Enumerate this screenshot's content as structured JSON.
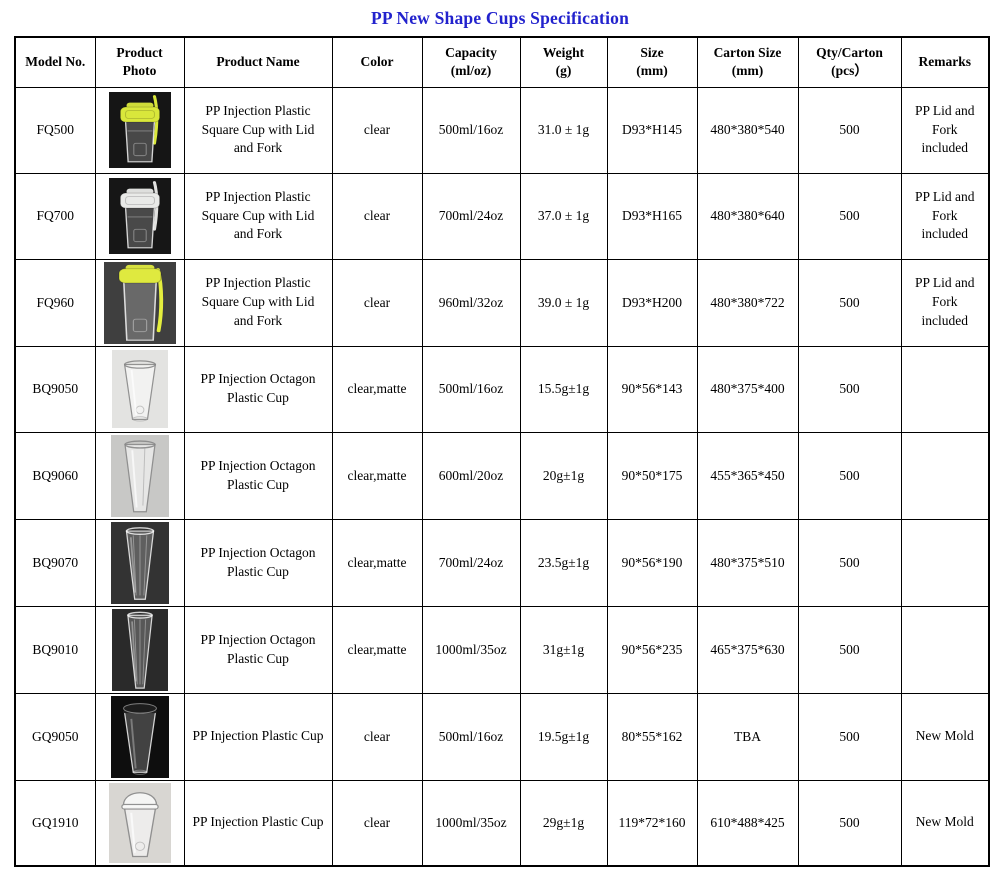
{
  "title": "PP New Shape Cups Specification",
  "title_color": "#2222cd",
  "table": {
    "columns": [
      {
        "key": "model",
        "label": "Model No.",
        "sublabel": ""
      },
      {
        "key": "photo",
        "label": "Product",
        "sublabel": "Photo"
      },
      {
        "key": "name",
        "label": "Product Name",
        "sublabel": ""
      },
      {
        "key": "color",
        "label": "Color",
        "sublabel": ""
      },
      {
        "key": "capacity",
        "label": "Capacity",
        "sublabel": "(ml/oz)"
      },
      {
        "key": "weight",
        "label": "Weight",
        "sublabel": "(g)"
      },
      {
        "key": "size",
        "label": "Size",
        "sublabel": "(mm)"
      },
      {
        "key": "carton",
        "label": "Carton Size",
        "sublabel": "(mm)"
      },
      {
        "key": "qty",
        "label": "Qty/Carton",
        "sublabel": "(pcs）"
      },
      {
        "key": "remarks",
        "label": "Remarks",
        "sublabel": ""
      }
    ],
    "rows": [
      {
        "model": "FQ500",
        "name": "PP Injection Plastic Square Cup with Lid and Fork",
        "color": "clear",
        "capacity": "500ml/16oz",
        "weight": "31.0 ± 1g",
        "size": "D93*H145",
        "carton": "480*380*540",
        "qty": "500",
        "remarks": "PP Lid and Fork included",
        "photo": {
          "desc": "square clear cup with yellow-green lid and fork on black background",
          "shape": "square",
          "tone": "dark",
          "bg": "#151515",
          "lid": "#d9e73b",
          "fork": "#d9e73b"
        }
      },
      {
        "model": "FQ700",
        "name": "PP Injection Plastic Square Cup with Lid and Fork",
        "color": "clear",
        "capacity": "700ml/24oz",
        "weight": "37.0 ± 1g",
        "size": "D93*H165",
        "carton": "480*380*640",
        "qty": "500",
        "remarks": "PP Lid and Fork included",
        "photo": {
          "desc": "square clear cup with clear lid and fork on black background",
          "shape": "square",
          "tone": "dark",
          "bg": "#161616",
          "lid": "#e9eae8",
          "fork": "#e2e2e0"
        }
      },
      {
        "model": "FQ960",
        "name": "PP Injection Plastic Square Cup with Lid and Fork",
        "color": "clear",
        "capacity": "960ml/32oz",
        "weight": "39.0 ± 1g",
        "size": "D93*H200",
        "carton": "480*380*722",
        "qty": "500",
        "remarks": "PP Lid and Fork included",
        "photo": {
          "desc": "tall square clear cup with yellow lid and fork on dark background",
          "shape": "square-tall",
          "tone": "dark",
          "bg": "#3f3f3f",
          "lid": "#dfe93f",
          "fork": "#e4ee3e"
        }
      },
      {
        "model": "BQ9050",
        "name": "PP Injection Octagon Plastic Cup",
        "color": "clear,matte",
        "capacity": "500ml/16oz",
        "weight": "15.5g±1g",
        "size": "90*56*143",
        "carton": "480*375*400",
        "qty": "500",
        "remarks": "",
        "photo": {
          "desc": "short tapered clear cup on light background",
          "shape": "taper",
          "tone": "light",
          "bg": "#e3e3e1",
          "lid": null,
          "fork": null
        }
      },
      {
        "model": "BQ9060",
        "name": "PP Injection Octagon Plastic Cup",
        "color": "clear,matte",
        "capacity": "600ml/20oz",
        "weight": "20g±1g",
        "size": "90*50*175",
        "carton": "455*365*450",
        "qty": "500",
        "remarks": "",
        "photo": {
          "desc": "tall tapered clear cup on gray background",
          "shape": "taper-tall",
          "tone": "light",
          "bg": "#c8c8c6",
          "lid": null,
          "fork": null
        }
      },
      {
        "model": "BQ9070",
        "name": "PP Injection Octagon Plastic Cup",
        "color": "clear,matte",
        "capacity": "700ml/24oz",
        "weight": "23.5g±1g",
        "size": "90*56*190",
        "carton": "480*375*510",
        "qty": "500",
        "remarks": "",
        "photo": {
          "desc": "tall fluted clear cup on dark background",
          "shape": "flute",
          "tone": "dark",
          "bg": "#333333",
          "lid": null,
          "fork": null
        }
      },
      {
        "model": "BQ9010",
        "name": "PP Injection Octagon Plastic Cup",
        "color": "clear,matte",
        "capacity": "1000ml/35oz",
        "weight": "31g±1g",
        "size": "90*56*235",
        "carton": "465*375*630",
        "qty": "500",
        "remarks": "",
        "photo": {
          "desc": "extra tall slim clear cup on dark background",
          "shape": "flute-x",
          "tone": "dark",
          "bg": "#2a2a2a",
          "lid": null,
          "fork": null
        }
      },
      {
        "model": "GQ9050",
        "name": "PP Injection Plastic Cup",
        "color": "clear",
        "capacity": "500ml/16oz",
        "weight": "19.5g±1g",
        "size": "80*55*162",
        "carton": "TBA",
        "qty": "500",
        "remarks": "New Mold",
        "photo": {
          "desc": "clear cup with black flat lid on black background",
          "shape": "lid-flat",
          "tone": "dark",
          "bg": "#0e0e0e",
          "lid": "#1d1d1d",
          "fork": null
        }
      },
      {
        "model": "GQ1910",
        "name": "PP Injection Plastic Cup",
        "color": "clear",
        "capacity": "1000ml/35oz",
        "weight": "29g±1g",
        "size": "119*72*160",
        "carton": "610*488*425",
        "qty": "500",
        "remarks": "New Mold",
        "photo": {
          "desc": "clear cup with frosted dome lid on light background",
          "shape": "dome",
          "tone": "light",
          "bg": "#d8d6d2",
          "lid": "#f2f2f0",
          "fork": null
        }
      }
    ]
  }
}
